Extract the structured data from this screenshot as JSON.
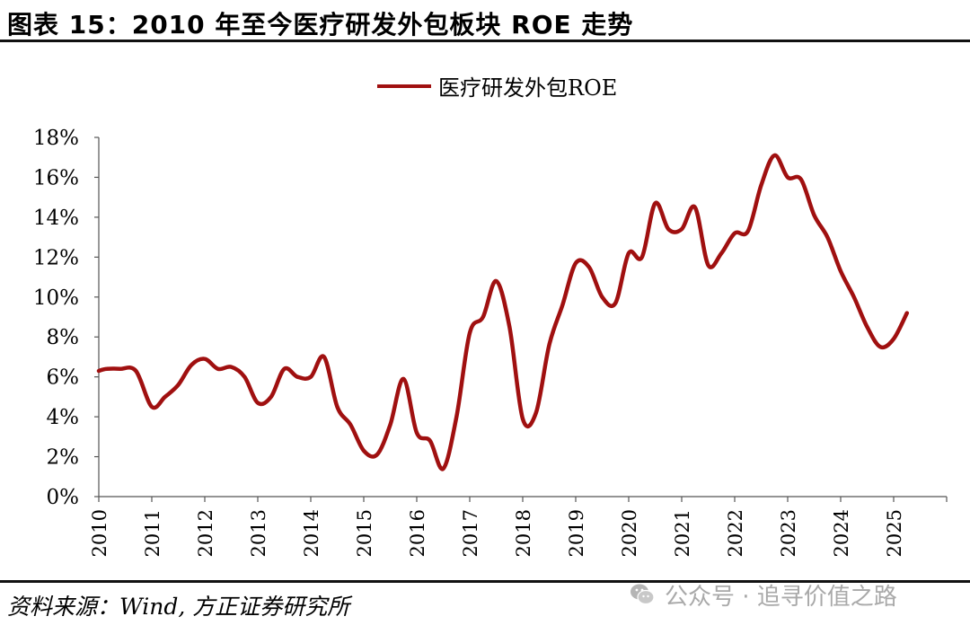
{
  "header": {
    "title": "图表 15：2010 年至今医疗研发外包板块 ROE 走势"
  },
  "footer": {
    "source": "资料来源：Wind, 方正证券研究所",
    "watermark": "公众号 · 追寻价值之路",
    "watermark_icon": "wechat-icon"
  },
  "colors": {
    "series_line": "#A01010",
    "axis": "#555555",
    "text": "#000000"
  },
  "chart_data": {
    "type": "line",
    "title": "",
    "xlabel": "",
    "ylabel": "",
    "xlim": [
      2010,
      2026
    ],
    "ylim": [
      0,
      18
    ],
    "y_ticks": [
      0,
      2,
      4,
      6,
      8,
      10,
      12,
      14,
      16,
      18
    ],
    "y_tick_labels": [
      "0%",
      "2%",
      "4%",
      "6%",
      "8%",
      "10%",
      "12%",
      "14%",
      "16%",
      "18%"
    ],
    "x_ticks": [
      2010,
      2011,
      2012,
      2013,
      2014,
      2015,
      2016,
      2017,
      2018,
      2019,
      2020,
      2021,
      2022,
      2023,
      2024,
      2025
    ],
    "x_tick_labels": [
      "2010",
      "2011",
      "2012",
      "2013",
      "2014",
      "2015",
      "2016",
      "2017",
      "2018",
      "2019",
      "2020",
      "2021",
      "2022",
      "2023",
      "2024",
      "2025"
    ],
    "legend_position": "top-center",
    "grid": false,
    "series": [
      {
        "name": "医疗研发外包ROE",
        "color": "#A01010",
        "x": [
          2010.0,
          2010.15,
          2010.4,
          2010.7,
          2011.0,
          2011.25,
          2011.5,
          2011.75,
          2012.0,
          2012.25,
          2012.5,
          2012.75,
          2013.0,
          2013.25,
          2013.5,
          2013.75,
          2014.0,
          2014.25,
          2014.5,
          2014.75,
          2015.0,
          2015.25,
          2015.5,
          2015.75,
          2016.0,
          2016.25,
          2016.5,
          2016.75,
          2017.0,
          2017.25,
          2017.5,
          2017.75,
          2018.0,
          2018.25,
          2018.5,
          2018.75,
          2019.0,
          2019.25,
          2019.5,
          2019.75,
          2020.0,
          2020.25,
          2020.5,
          2020.75,
          2021.0,
          2021.25,
          2021.5,
          2021.75,
          2022.0,
          2022.25,
          2022.5,
          2022.75,
          2023.0,
          2023.25,
          2023.5,
          2023.75,
          2024.0,
          2024.25,
          2024.5,
          2024.75,
          2025.0,
          2025.25
        ],
        "values": [
          6.3,
          6.4,
          6.4,
          6.3,
          4.5,
          5.0,
          5.6,
          6.6,
          6.9,
          6.4,
          6.5,
          6.0,
          4.7,
          5.0,
          6.4,
          6.0,
          6.0,
          7.0,
          4.5,
          3.6,
          2.3,
          2.1,
          3.6,
          5.9,
          3.2,
          2.8,
          1.4,
          4.0,
          8.2,
          9.0,
          10.8,
          8.5,
          3.9,
          4.2,
          7.6,
          9.6,
          11.7,
          11.5,
          10.0,
          9.7,
          12.2,
          12.0,
          14.7,
          13.4,
          13.4,
          14.5,
          11.6,
          12.2,
          13.2,
          13.3,
          15.6,
          17.1,
          16.0,
          15.9,
          14.1,
          13.0,
          11.3,
          10.0,
          8.5,
          7.5,
          7.9,
          9.2
        ]
      }
    ]
  }
}
